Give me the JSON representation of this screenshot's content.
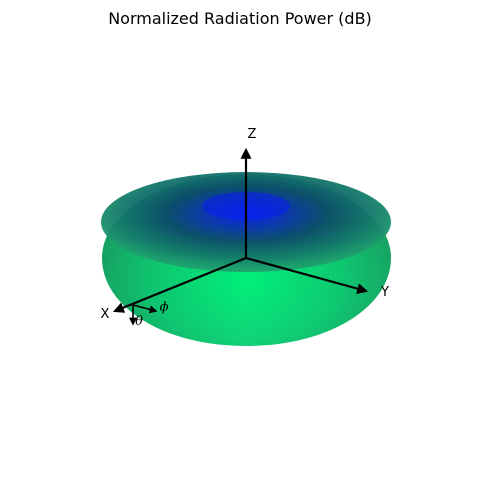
{
  "chart_data": {
    "type": "surface-3d",
    "title": "Normalized Radiation Power (dB)",
    "surface": "toroidal (donut) radiation pattern, maximum in the XY plane, null along the Z axis",
    "axes": [
      {
        "name": "X",
        "label": "X"
      },
      {
        "name": "Y",
        "label": "Y"
      },
      {
        "name": "Z",
        "label": "Z"
      }
    ],
    "angle_labels": {
      "phi": "ϕ",
      "theta": "θ"
    },
    "colormap": {
      "low": "#0a1ef0",
      "mid": "#0c5a50",
      "high": "#00f07a"
    },
    "grid": false,
    "legend": "none"
  }
}
